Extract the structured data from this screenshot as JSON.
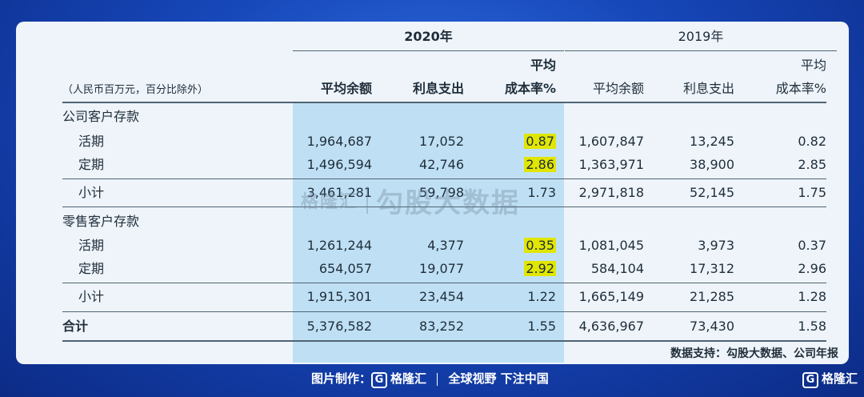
{
  "header": {
    "year_2020": "2020年",
    "year_2019": "2019年",
    "unit_note": "（人民币百万元，百分比除外）",
    "col_avg_balance": "平均余额",
    "col_interest": "利息支出",
    "col_rate_line1": "平均",
    "col_rate_line2": "成本率%"
  },
  "sections": {
    "corporate": "公司客户存款",
    "retail": "零售客户存款"
  },
  "rows": [
    {
      "label": "活期",
      "a20": "1,964,687",
      "i20": "17,052",
      "r20": "0.87",
      "a19": "1,607,847",
      "i19": "13,245",
      "r19": "0.82"
    },
    {
      "label": "定期",
      "a20": "1,496,594",
      "i20": "42,746",
      "r20": "2.86",
      "a19": "1,363,971",
      "i19": "38,900",
      "r19": "2.85"
    },
    {
      "label": "小计",
      "a20": "3,461,281",
      "i20": "59,798",
      "r20": "1.73",
      "a19": "2,971,818",
      "i19": "52,145",
      "r19": "1.75"
    },
    {
      "label": "活期",
      "a20": "1,261,244",
      "i20": "4,377",
      "r20": "0.35",
      "a19": "1,081,045",
      "i19": "3,973",
      "r19": "0.37"
    },
    {
      "label": "定期",
      "a20": "654,057",
      "i20": "19,077",
      "r20": "2.92",
      "a19": "584,104",
      "i19": "17,312",
      "r19": "2.96"
    },
    {
      "label": "小计",
      "a20": "1,915,301",
      "i20": "23,454",
      "r20": "1.22",
      "a19": "1,665,149",
      "i19": "21,285",
      "r19": "1.28"
    },
    {
      "label": "合计",
      "a20": "5,376,582",
      "i20": "83,252",
      "r20": "1.55",
      "a19": "4,636,967",
      "i19": "73,430",
      "r19": "1.58"
    }
  ],
  "source_note": "数据支持：勾股大数据、公司年报",
  "watermark": {
    "brand": "格隆汇",
    "text": "勾股大数据"
  },
  "footer": {
    "made_by": "图片制作：",
    "brand": "格隆汇",
    "slogan": "全球视野 下注中国",
    "logo_glyph": "G",
    "corner_brand": "格隆汇"
  },
  "colors": {
    "highlight_column": "#bfe0f4",
    "highlight_marker": "#e1e600",
    "background": "#1646b8"
  }
}
